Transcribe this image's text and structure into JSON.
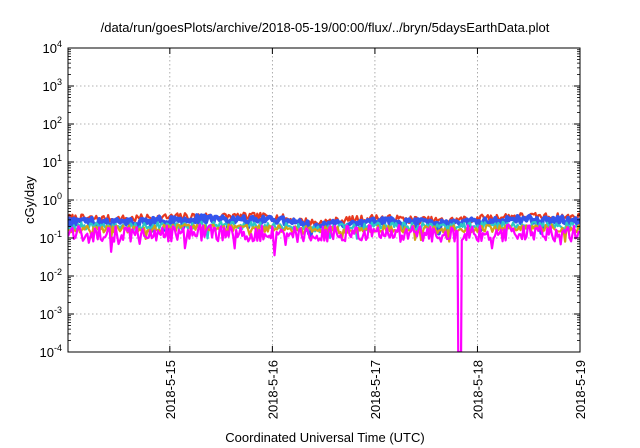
{
  "chart_data": {
    "type": "line",
    "title": "/data/run/goesPlots/archive/2018-05-19/00:00/flux/../bryn/5daysEarthData.plot",
    "xlabel": "Coordinated Universal Time (UTC)",
    "ylabel": "cGy/day",
    "y_scale": "log",
    "ylim": [
      0.0001,
      10000
    ],
    "y_ticks": [
      {
        "value": 0.0001,
        "base": "10",
        "exp": "-4"
      },
      {
        "value": 0.001,
        "base": "10",
        "exp": "-3"
      },
      {
        "value": 0.01,
        "base": "10",
        "exp": "-2"
      },
      {
        "value": 0.1,
        "base": "10",
        "exp": "-1"
      },
      {
        "value": 1,
        "base": "10",
        "exp": "0"
      },
      {
        "value": 10,
        "base": "10",
        "exp": "1"
      },
      {
        "value": 100,
        "base": "10",
        "exp": "2"
      },
      {
        "value": 1000,
        "base": "10",
        "exp": "3"
      },
      {
        "value": 10000,
        "base": "10",
        "exp": "4"
      }
    ],
    "xlim": [
      "2018-05-14T00:10",
      "2018-05-19T00:00"
    ],
    "x_ticks": [
      "2018-5-15",
      "2018-5-16",
      "2018-5-17",
      "2018-5-18",
      "2018-5-19"
    ],
    "x_tick_dates": [
      "2018-05-15",
      "2018-05-16",
      "2018-05-17",
      "2018-05-18",
      "2018-05-19"
    ],
    "grid": true,
    "series": [
      {
        "color": "#e8391e",
        "points": [
          [
            "2018-05-14T00:10",
            0.36
          ],
          [
            "2018-05-14T12:00",
            0.34
          ],
          [
            "2018-05-15T06:00",
            0.4
          ],
          [
            "2018-05-16T00:00",
            0.39
          ],
          [
            "2018-05-16T10:00",
            0.27
          ],
          [
            "2018-05-17T00:00",
            0.36
          ],
          [
            "2018-05-17T16:00",
            0.3
          ],
          [
            "2018-05-18T08:00",
            0.4
          ],
          [
            "2018-05-19T00:00",
            0.38
          ]
        ]
      },
      {
        "color": "#3355ee",
        "points": [
          [
            "2018-05-14T00:10",
            0.3
          ],
          [
            "2018-05-14T12:00",
            0.28
          ],
          [
            "2018-05-15T06:00",
            0.34
          ],
          [
            "2018-05-16T00:00",
            0.33
          ],
          [
            "2018-05-16T10:00",
            0.22
          ],
          [
            "2018-05-17T00:00",
            0.3
          ],
          [
            "2018-05-17T16:00",
            0.25
          ],
          [
            "2018-05-18T08:00",
            0.33
          ],
          [
            "2018-05-19T00:00",
            0.32
          ]
        ]
      },
      {
        "color": "#2bc7c7",
        "points": [
          [
            "2018-05-14T00:10",
            0.22
          ],
          [
            "2018-05-14T12:00",
            0.21
          ],
          [
            "2018-05-15T06:00",
            0.23
          ],
          [
            "2018-05-16T00:00",
            0.22
          ],
          [
            "2018-05-16T10:00",
            0.19
          ],
          [
            "2018-05-17T00:00",
            0.22
          ],
          [
            "2018-05-17T16:00",
            0.21
          ],
          [
            "2018-05-18T08:00",
            0.23
          ],
          [
            "2018-05-19T00:00",
            0.22
          ]
        ]
      },
      {
        "color": "#d4a017",
        "points": [
          [
            "2018-05-14T00:10",
            0.19
          ],
          [
            "2018-05-14T12:00",
            0.18
          ],
          [
            "2018-05-15T06:00",
            0.2
          ],
          [
            "2018-05-16T00:00",
            0.19
          ],
          [
            "2018-05-16T10:00",
            0.17
          ],
          [
            "2018-05-17T00:00",
            0.19
          ],
          [
            "2018-05-17T16:00",
            0.18
          ],
          [
            "2018-05-18T08:00",
            0.2
          ],
          [
            "2018-05-19T00:00",
            0.19
          ]
        ]
      },
      {
        "color": "#ff00ff",
        "points": [
          [
            "2018-05-14T00:10",
            0.16
          ],
          [
            "2018-05-14T12:00",
            0.14
          ],
          [
            "2018-05-15T06:00",
            0.16
          ],
          [
            "2018-05-16T00:00",
            0.15
          ],
          [
            "2018-05-16T00:30",
            0.035
          ],
          [
            "2018-05-16T01:00",
            0.14
          ],
          [
            "2018-05-17T00:00",
            0.16
          ],
          [
            "2018-05-17T19:20",
            0.15
          ],
          [
            "2018-05-17T19:30",
            0.0001
          ],
          [
            "2018-05-17T20:10",
            0.0001
          ],
          [
            "2018-05-17T20:20",
            0.15
          ],
          [
            "2018-05-18T08:00",
            0.16
          ],
          [
            "2018-05-19T00:00",
            0.15
          ]
        ]
      }
    ]
  }
}
